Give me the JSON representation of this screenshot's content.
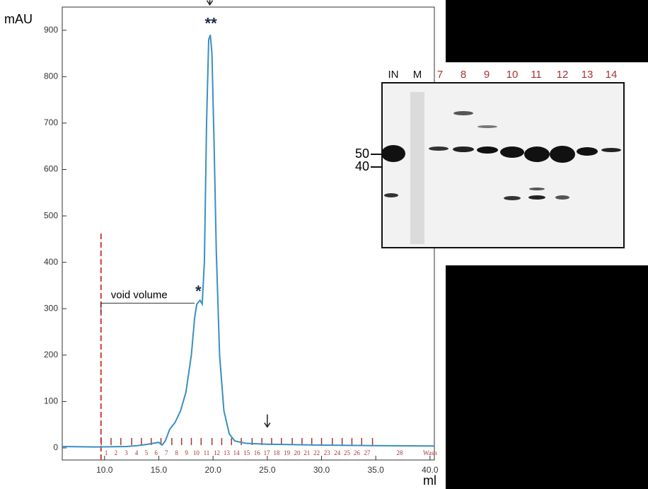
{
  "chart_data": {
    "type": "line",
    "x": [
      6.1,
      9,
      12,
      13,
      14,
      14.5,
      15,
      15.3,
      15.6,
      16,
      16.5,
      17,
      17.5,
      18,
      18.3,
      18.5,
      18.8,
      19,
      19.2,
      19.4,
      19.6,
      19.75,
      19.9,
      20.1,
      20.3,
      20.6,
      21,
      21.5,
      22,
      23,
      25,
      30,
      35,
      40.4
    ],
    "values": [
      3,
      2,
      3,
      5,
      8,
      10,
      12,
      6,
      15,
      40,
      55,
      80,
      120,
      200,
      280,
      310,
      318,
      310,
      400,
      700,
      880,
      890,
      850,
      650,
      420,
      200,
      80,
      30,
      15,
      10,
      8,
      6,
      5,
      4
    ],
    "color": "#3a8fc0",
    "xlabel": "ml",
    "ylabel": "mAU",
    "xlim": [
      6.1,
      40.4
    ],
    "ylim": [
      -26,
      950
    ],
    "xticks": [
      {
        "value": 10,
        "label": "10.0"
      },
      {
        "value": 15,
        "label": "15.0"
      },
      {
        "value": 20,
        "label": "20.0"
      },
      {
        "value": 25,
        "label": "25.0"
      },
      {
        "value": 30,
        "label": "30.0"
      },
      {
        "value": 35,
        "label": "35.0"
      },
      {
        "value": 40,
        "label": "40.0"
      }
    ],
    "yticks": [
      0,
      100,
      200,
      300,
      400,
      500,
      600,
      700,
      800,
      900
    ],
    "void_volume": {
      "label": "void volume",
      "x": 9.67,
      "top": 466,
      "label_y": 312,
      "label_end": 18.3
    },
    "annotations": [
      {
        "text": "*",
        "x": 18.65,
        "y": 335
      },
      {
        "text": "**",
        "x": 19.8,
        "y": 912
      }
    ],
    "arrows": [
      {
        "x": 19.7,
        "y": 955
      },
      {
        "x": 25,
        "y": 45
      }
    ],
    "fraction_color": "#a83232",
    "fraction_ticks": [
      9.7,
      10.6,
      11.5,
      12.5,
      13.4,
      14.3,
      15.2,
      16.2,
      17.1,
      18.0,
      18.9,
      19.9,
      20.8,
      21.7,
      22.6,
      23.6,
      24.5,
      25.4,
      26.3,
      27.3,
      28.2,
      29.1,
      30.0,
      31.0,
      31.9,
      32.8,
      33.7,
      34.7
    ],
    "fractions": [
      {
        "label": "1",
        "x": 10.15
      },
      {
        "label": "2",
        "x": 11.05
      },
      {
        "label": "3",
        "x": 12.0
      },
      {
        "label": "4",
        "x": 12.95
      },
      {
        "label": "5",
        "x": 13.85
      },
      {
        "label": "6",
        "x": 14.75
      },
      {
        "label": "7",
        "x": 15.7
      },
      {
        "label": "8",
        "x": 16.65
      },
      {
        "label": "9",
        "x": 17.55
      },
      {
        "label": "10",
        "x": 18.45
      },
      {
        "label": "11",
        "x": 19.4
      },
      {
        "label": "12",
        "x": 20.35
      },
      {
        "label": "13",
        "x": 21.25
      },
      {
        "label": "14",
        "x": 22.15
      },
      {
        "label": "15",
        "x": 23.1
      },
      {
        "label": "16",
        "x": 24.05
      },
      {
        "label": "17",
        "x": 24.95
      },
      {
        "label": "18",
        "x": 25.85
      },
      {
        "label": "19",
        "x": 26.8
      },
      {
        "label": "20",
        "x": 27.75
      },
      {
        "label": "21",
        "x": 28.65
      },
      {
        "label": "22",
        "x": 29.55
      },
      {
        "label": "23",
        "x": 30.5
      },
      {
        "label": "24",
        "x": 31.45
      },
      {
        "label": "25",
        "x": 32.35
      },
      {
        "label": "26",
        "x": 33.25
      },
      {
        "label": "27",
        "x": 34.2
      },
      {
        "label": "28",
        "x": 37.2
      },
      {
        "label": "Wash",
        "x": 40.0
      }
    ]
  },
  "gel": {
    "lanes": [
      "IN",
      "M",
      "7",
      "8",
      "9",
      "10",
      "11",
      "12",
      "13",
      "14"
    ],
    "markers": [
      "50",
      "40"
    ]
  }
}
